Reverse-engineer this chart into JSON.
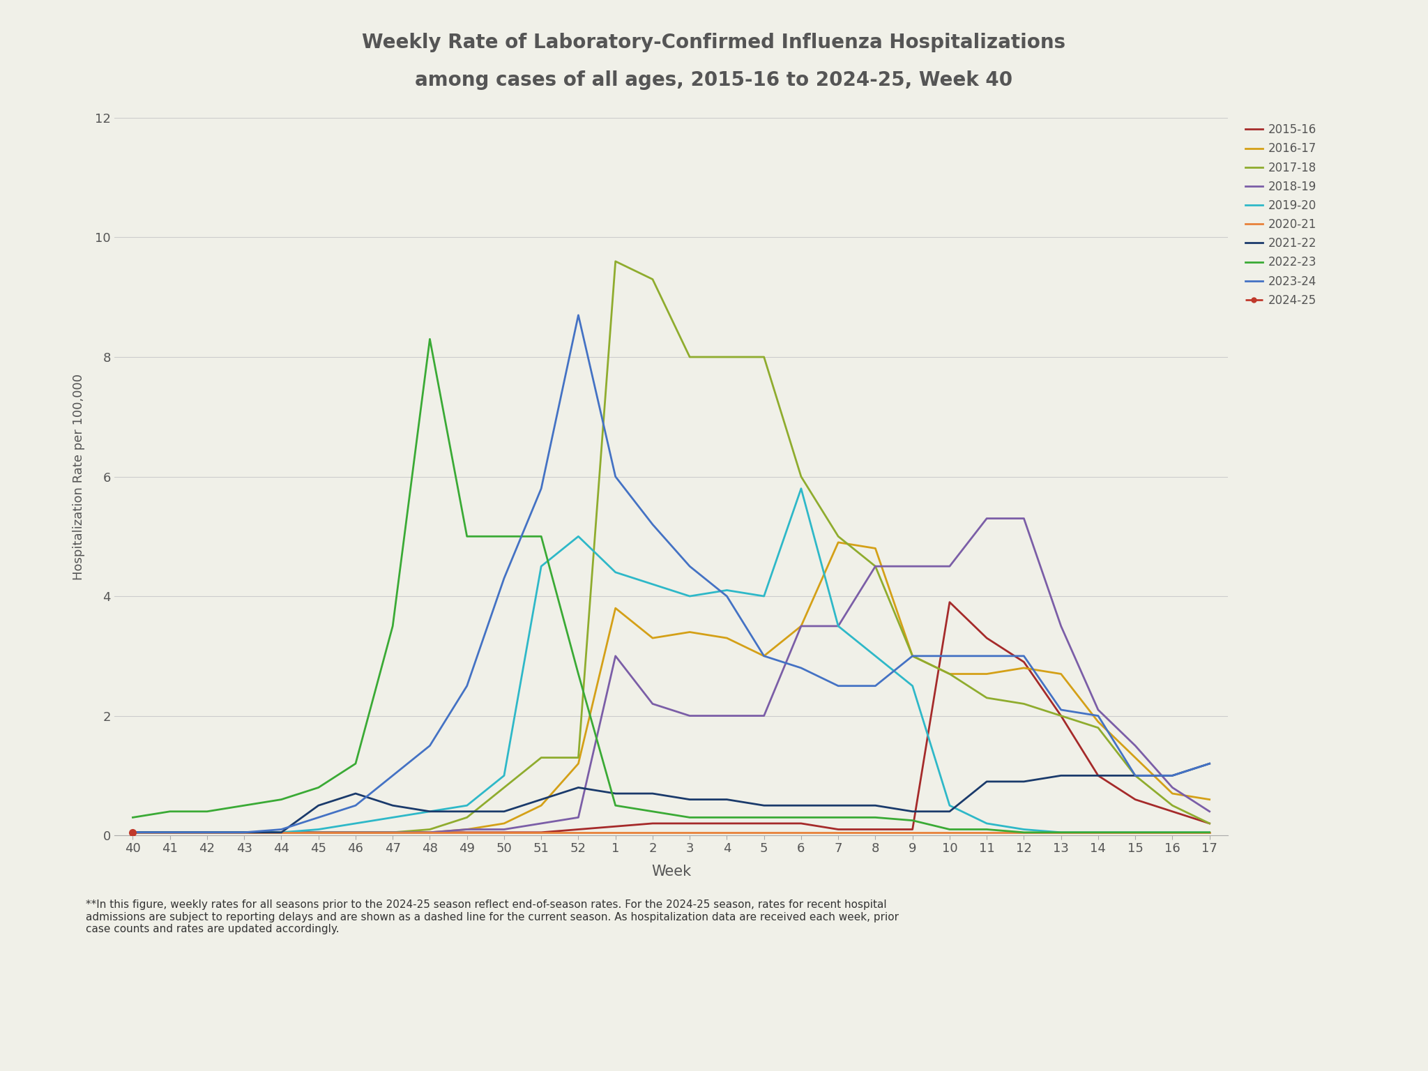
{
  "title_line1": "Weekly Rate of Laboratory-Confirmed Influenza Hospitalizations",
  "title_line2": "among cases of all ages, 2015-16 to 2024-25, Week 40",
  "xlabel": "Week",
  "ylabel": "Hospitalization Rate per 100,000",
  "ylim": [
    0,
    12
  ],
  "yticks": [
    0,
    2,
    4,
    6,
    8,
    10,
    12
  ],
  "background_color": "#f0f0e8",
  "title_color": "#555555",
  "footnote": "**In this figure, weekly rates for all seasons prior to the 2024-25 season reflect end-of-season rates. For the 2024-25 season, rates for recent hospital\nadmissions are subject to reporting delays and are shown as a dashed line for the current season. As hospitalization data are received each week, prior\ncase counts and rates are updated accordingly.",
  "weeks": [
    40,
    41,
    42,
    43,
    44,
    45,
    46,
    47,
    48,
    49,
    50,
    51,
    52,
    1,
    2,
    3,
    4,
    5,
    6,
    7,
    8,
    9,
    10,
    11,
    12,
    13,
    14,
    15,
    16,
    17
  ],
  "seasons": {
    "2015-16": {
      "color": "#a52a2a",
      "dashed": false,
      "data": [
        0.05,
        0.05,
        0.05,
        0.05,
        0.05,
        0.05,
        0.05,
        0.05,
        0.05,
        0.05,
        0.05,
        0.05,
        0.1,
        0.15,
        0.2,
        0.2,
        0.2,
        0.2,
        0.2,
        0.1,
        0.1,
        0.1,
        3.9,
        3.3,
        2.9,
        2.0,
        1.0,
        0.6,
        0.4,
        0.2
      ]
    },
    "2016-17": {
      "color": "#d4a017",
      "dashed": false,
      "data": [
        0.05,
        0.05,
        0.05,
        0.05,
        0.05,
        0.05,
        0.05,
        0.05,
        0.05,
        0.1,
        0.2,
        0.5,
        1.2,
        3.8,
        3.3,
        3.4,
        3.3,
        3.0,
        3.5,
        4.9,
        4.8,
        3.0,
        2.7,
        2.7,
        2.8,
        2.7,
        1.9,
        1.3,
        0.7,
        0.6
      ]
    },
    "2017-18": {
      "color": "#8fac2e",
      "dashed": false,
      "data": [
        0.05,
        0.05,
        0.05,
        0.05,
        0.05,
        0.05,
        0.05,
        0.05,
        0.1,
        0.3,
        0.8,
        1.3,
        1.3,
        9.6,
        9.3,
        8.0,
        8.0,
        8.0,
        6.0,
        5.0,
        4.5,
        3.0,
        2.7,
        2.3,
        2.2,
        2.0,
        1.8,
        1.0,
        0.5,
        0.2
      ]
    },
    "2018-19": {
      "color": "#7b5ea7",
      "dashed": false,
      "data": [
        0.05,
        0.05,
        0.05,
        0.05,
        0.05,
        0.05,
        0.05,
        0.05,
        0.05,
        0.1,
        0.1,
        0.2,
        0.3,
        3.0,
        2.2,
        2.0,
        2.0,
        2.0,
        3.5,
        3.5,
        4.5,
        4.5,
        4.5,
        5.3,
        5.3,
        3.5,
        2.1,
        1.5,
        0.8,
        0.4
      ]
    },
    "2019-20": {
      "color": "#2eb8c8",
      "dashed": false,
      "data": [
        0.05,
        0.05,
        0.05,
        0.05,
        0.05,
        0.1,
        0.2,
        0.3,
        0.4,
        0.5,
        1.0,
        4.5,
        5.0,
        4.4,
        4.2,
        4.0,
        4.1,
        4.0,
        5.8,
        3.5,
        3.0,
        2.5,
        0.5,
        0.2,
        0.1,
        0.05,
        0.05,
        0.05,
        0.05,
        0.05
      ]
    },
    "2020-21": {
      "color": "#e8813a",
      "dashed": false,
      "data": [
        0.05,
        0.05,
        0.05,
        0.05,
        0.05,
        0.05,
        0.05,
        0.05,
        0.05,
        0.05,
        0.05,
        0.05,
        0.05,
        0.05,
        0.05,
        0.05,
        0.05,
        0.05,
        0.05,
        0.05,
        0.05,
        0.05,
        0.05,
        0.05,
        0.05,
        0.05,
        0.05,
        0.05,
        0.05,
        0.05
      ]
    },
    "2021-22": {
      "color": "#1a3a6b",
      "dashed": false,
      "data": [
        0.05,
        0.05,
        0.05,
        0.05,
        0.05,
        0.5,
        0.7,
        0.5,
        0.4,
        0.4,
        0.4,
        0.6,
        0.8,
        0.7,
        0.7,
        0.6,
        0.6,
        0.5,
        0.5,
        0.5,
        0.5,
        0.4,
        0.4,
        0.9,
        0.9,
        1.0,
        1.0,
        1.0,
        1.0,
        1.2
      ]
    },
    "2022-23": {
      "color": "#3aaa35",
      "dashed": false,
      "data": [
        0.3,
        0.4,
        0.4,
        0.5,
        0.6,
        0.8,
        1.2,
        3.5,
        8.3,
        5.0,
        5.0,
        5.0,
        2.7,
        0.5,
        0.4,
        0.3,
        0.3,
        0.3,
        0.3,
        0.3,
        0.3,
        0.25,
        0.1,
        0.1,
        0.05,
        0.05,
        0.05,
        0.05,
        0.05,
        0.05
      ]
    },
    "2023-24": {
      "color": "#4472c4",
      "dashed": false,
      "data": [
        0.05,
        0.05,
        0.05,
        0.05,
        0.1,
        0.3,
        0.5,
        1.0,
        1.5,
        2.5,
        4.3,
        5.8,
        8.7,
        6.0,
        5.2,
        4.5,
        4.0,
        3.0,
        2.8,
        2.5,
        2.5,
        3.0,
        3.0,
        3.0,
        3.0,
        2.1,
        2.0,
        1.0,
        1.0,
        1.2
      ]
    },
    "2024-25": {
      "color": "#c0392b",
      "dashed": true,
      "marker_only": true,
      "data": [
        0.05,
        null,
        null,
        null,
        null,
        null,
        null,
        null,
        null,
        null,
        null,
        null,
        null,
        null,
        null,
        null,
        null,
        null,
        null,
        null,
        null,
        null,
        null,
        null,
        null,
        null,
        null,
        null,
        null,
        null
      ]
    }
  }
}
